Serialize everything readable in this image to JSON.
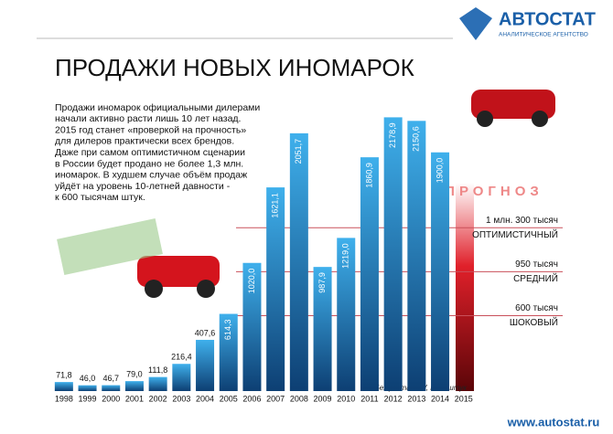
{
  "chart_data": {
    "type": "bar",
    "title": "ПРОДАЖИ НОВЫХ ИНОМАРОК",
    "description": [
      "Продажи иномарок официальными дилерами",
      "начали активно расти лишь 10 лет назад.",
      "2015 год станет «проверкой на прочность»",
      "для дилеров практически всех брендов.",
      "Даже при самом оптимистичном сценарии",
      "в России будет продано не более 1,3 млн.",
      "иномарок. В худшем случае объём продаж",
      "уйдёт на уровень 10-летней давности -",
      "к 600 тысячам штук."
    ],
    "brand": "АВТОСТАТ",
    "brand_subtitle": "АНАЛИТИЧЕСКОЕ АГЕНТСТВО",
    "forecast_label": "ПРОГНОЗ",
    "note": "Без учёта LCV, тыс.штук",
    "website": "www.autostat.ru",
    "categories": [
      "1998",
      "1999",
      "2000",
      "2001",
      "2002",
      "2003",
      "2004",
      "2005",
      "2006",
      "2007",
      "2008",
      "2009",
      "2010",
      "2011",
      "2012",
      "2013",
      "2014",
      "2015"
    ],
    "values": [
      71.8,
      46.0,
      46.7,
      79.0,
      111.8,
      216.4,
      407.6,
      614.3,
      1020.0,
      1621.1,
      2051.7,
      987.9,
      1219.0,
      1860.9,
      2178.9,
      2150.6,
      1900.0,
      null
    ],
    "value_labels": [
      "71,8",
      "46,0",
      "46,7",
      "79,0",
      "111,8",
      "216,4",
      "407,6",
      "614,3",
      "1020,0",
      "1621,1",
      "2051,7",
      "987,9",
      "1219,0",
      "1860,9",
      "2178,9",
      "2150,6",
      "1900,0",
      null
    ],
    "color": "#1b75b8",
    "ylim": [
      0,
      2400
    ],
    "scenarios": [
      {
        "value": 1300,
        "label": "1 млн. 300 тысяч",
        "name": "ОПТИМИСТИЧНЫЙ"
      },
      {
        "value": 950,
        "label": "950 тысяч",
        "name": "СРЕДНИЙ"
      },
      {
        "value": 600,
        "label": "600 тысяч",
        "name": "ШОКОВЫЙ"
      }
    ]
  }
}
